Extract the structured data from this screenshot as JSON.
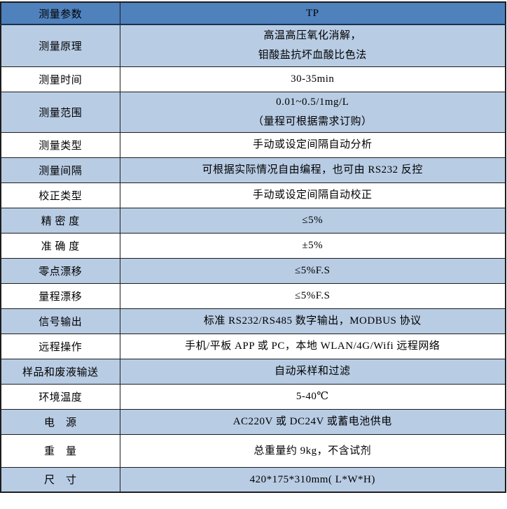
{
  "table": {
    "colors": {
      "header_bg": "#4f81bd",
      "alt_row_bg": "#b8cce4",
      "row_bg": "#ffffff",
      "grid_border": "#1d1d1d",
      "header_underline": "#16314f",
      "text": "#000000"
    },
    "header": {
      "param": "测量参数",
      "value": "TP"
    },
    "rows": [
      {
        "label": "测量原理",
        "lines": [
          "高温高压氧化消解，",
          "钼酸盐抗坏血酸比色法"
        ]
      },
      {
        "label": "测量时间",
        "lines": [
          "30-35min"
        ]
      },
      {
        "label": "测量范围",
        "lines": [
          "0.01~0.5/1mg/L",
          "（量程可根据需求订购）"
        ]
      },
      {
        "label": "测量类型",
        "lines": [
          "手动或设定间隔自动分析"
        ]
      },
      {
        "label": "测量间隔",
        "lines": [
          "可根据实际情况自由编程，也可由 RS232 反控"
        ]
      },
      {
        "label": "校正类型",
        "lines": [
          "手动或设定间隔自动校正"
        ]
      },
      {
        "label": "精 密 度",
        "lines": [
          "≤5%"
        ]
      },
      {
        "label": "准 确 度",
        "lines": [
          "±5%"
        ]
      },
      {
        "label": "零点漂移",
        "lines": [
          "≤5%F.S"
        ]
      },
      {
        "label": "量程漂移",
        "lines": [
          "≤5%F.S"
        ]
      },
      {
        "label": "信号输出",
        "lines": [
          "标准 RS232/RS485 数字输出，MODBUS 协议"
        ]
      },
      {
        "label": "远程操作",
        "lines": [
          "手机/平板 APP 或 PC，本地 WLAN/4G/Wifi 远程网络"
        ]
      },
      {
        "label": "样品和废液输送",
        "lines": [
          "自动采样和过滤"
        ]
      },
      {
        "label": "环境温度",
        "lines": [
          "5-40℃"
        ]
      },
      {
        "label": "电　源",
        "lines": [
          "AC220V 或 DC24V 或蓄电池供电"
        ]
      },
      {
        "label": "重　量",
        "lines": [
          "总重量约 9kg，不含试剂"
        ]
      },
      {
        "label": "尺　寸",
        "lines": [
          "420*175*310mm( L*W*H)"
        ]
      }
    ]
  }
}
